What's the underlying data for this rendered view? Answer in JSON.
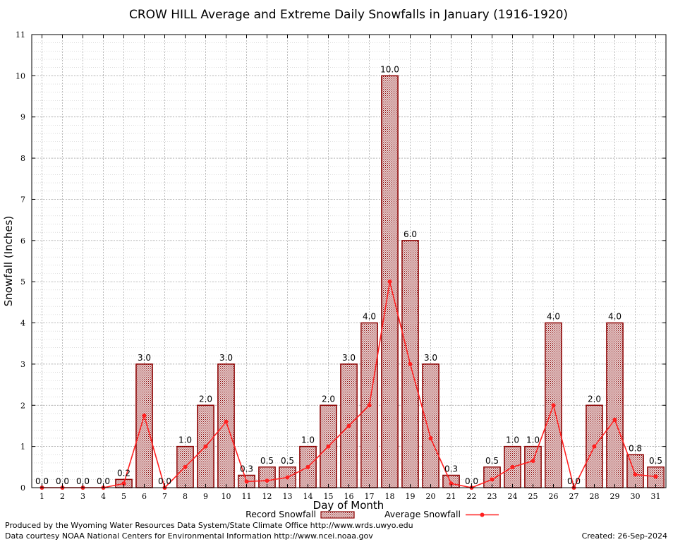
{
  "chart_data": {
    "type": "bar",
    "title": "CROW HILL Average and Extreme Daily Snowfalls in January (1916-1920)",
    "xlabel": "Day of Month",
    "ylabel": "Snowfall (Inches)",
    "ylim": [
      0,
      11
    ],
    "yticks": [
      0,
      1,
      2,
      3,
      4,
      5,
      6,
      7,
      8,
      9,
      10,
      11
    ],
    "categories": [
      "1",
      "2",
      "3",
      "4",
      "5",
      "6",
      "7",
      "8",
      "9",
      "10",
      "11",
      "12",
      "13",
      "14",
      "15",
      "16",
      "17",
      "18",
      "19",
      "20",
      "21",
      "22",
      "23",
      "24",
      "25",
      "26",
      "27",
      "28",
      "29",
      "30",
      "31"
    ],
    "series": [
      {
        "name": "Record Snowfall",
        "kind": "bar",
        "values": [
          0,
          0,
          0,
          0,
          0.2,
          3,
          0,
          1,
          2,
          3,
          0.3,
          0.5,
          0.5,
          1,
          2,
          3,
          4,
          10,
          6,
          3,
          0.3,
          0,
          0.5,
          1,
          1,
          4,
          0,
          2,
          4,
          0.8,
          0.5
        ],
        "labels": [
          "0.0",
          "0.0",
          "0.0",
          "0.0",
          "0.2",
          "3.0",
          "0.0",
          "1.0",
          "2.0",
          "3.0",
          "0.3",
          "0.5",
          "0.5",
          "1.0",
          "2.0",
          "3.0",
          "4.0",
          "10.0",
          "6.0",
          "3.0",
          "0.3",
          "0.0",
          "0.5",
          "1.0",
          "1.0",
          "4.0",
          "0.0",
          "2.0",
          "4.0",
          "0.8",
          "0.5"
        ]
      },
      {
        "name": "Average Snowfall",
        "kind": "line",
        "values": [
          0,
          0,
          0,
          0,
          0.1,
          1.75,
          0,
          0.5,
          1,
          1.6,
          0.15,
          0.17,
          0.25,
          0.5,
          1,
          1.5,
          2,
          5,
          3,
          1.2,
          0.1,
          0,
          0.2,
          0.5,
          0.65,
          2,
          0,
          1,
          1.65,
          0.32,
          0.27
        ]
      }
    ],
    "colors": {
      "bar_fill": "#c9a9a9",
      "bar_edge": "#8b0000",
      "line": "#ff2020",
      "grid": "#c8c8c8"
    }
  },
  "footer": {
    "produced_by": "Produced by the Wyoming Water Resources Data System/State Climate Office http://www.wrds.uwyo.edu",
    "courtesy": "Data courtesy NOAA National Centers for Environmental Information http://www.ncei.noaa.gov",
    "created": "Created:  26-Sep-2024"
  }
}
